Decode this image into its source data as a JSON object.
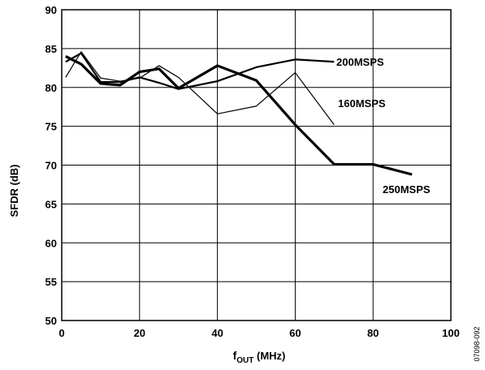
{
  "chart_data": {
    "type": "line",
    "title": "",
    "xlabel": {
      "main": "f",
      "subscript": "OUT",
      "suffix": " (MHz)"
    },
    "ylabel": "SFDR (dB)",
    "xlim": [
      0,
      100
    ],
    "ylim": [
      50,
      90
    ],
    "x_ticks": [
      0,
      20,
      40,
      60,
      80,
      100
    ],
    "y_ticks": [
      50,
      55,
      60,
      65,
      70,
      75,
      80,
      85,
      90
    ],
    "grid": true,
    "legend": "inline labels",
    "series": [
      {
        "name": "200MSPS",
        "stroke_weight": "medium",
        "x": [
          1,
          5,
          10,
          15,
          20,
          25,
          30,
          40,
          50,
          60,
          70
        ],
        "y": [
          83.3,
          84.4,
          80.7,
          80.7,
          81.3,
          80.6,
          79.8,
          80.8,
          82.6,
          83.6,
          83.3
        ]
      },
      {
        "name": "160MSPS",
        "stroke_weight": "thin",
        "x": [
          1,
          5,
          10,
          15,
          20,
          25,
          30,
          40,
          50,
          60,
          70
        ],
        "y": [
          81.3,
          84.6,
          81.2,
          80.8,
          81.2,
          82.8,
          81.3,
          76.6,
          77.6,
          81.9,
          75.2
        ]
      },
      {
        "name": "250MSPS",
        "stroke_weight": "thick",
        "x": [
          1,
          5,
          10,
          15,
          20,
          25,
          30,
          40,
          50,
          60,
          70,
          80,
          90
        ],
        "y": [
          84.0,
          83.0,
          80.5,
          80.3,
          82.0,
          82.4,
          79.9,
          82.8,
          80.9,
          75.2,
          70.1,
          70.1,
          68.8
        ]
      }
    ],
    "annotations": [
      "07098-092"
    ]
  }
}
